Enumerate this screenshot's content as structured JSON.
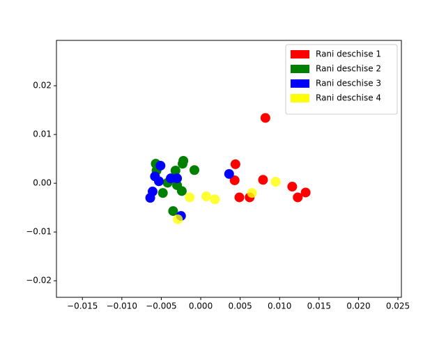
{
  "chart_data": {
    "type": "scatter",
    "series": [
      {
        "name": "Rani deschise 1",
        "color": "#ff0000",
        "x": [
          0.0082,
          0.0044,
          0.0043,
          0.0049,
          0.0062,
          0.0079,
          0.0116,
          0.0123,
          0.0133
        ],
        "y": [
          0.0134,
          0.0039,
          0.0006,
          -0.0029,
          -0.0029,
          0.0007,
          -0.0007,
          -0.0029,
          -0.0019
        ]
      },
      {
        "name": "Rani deschise 2",
        "color": "#008000",
        "x": [
          -0.0057,
          -0.0022,
          -0.0023,
          -0.0008,
          -0.0032,
          -0.0056,
          -0.0042,
          -0.003,
          -0.0024,
          -0.0048,
          -0.0035
        ],
        "y": [
          0.004,
          0.0046,
          0.004,
          0.0027,
          0.0026,
          0.0026,
          0.0001,
          -0.0004,
          -0.0016,
          -0.002,
          -0.0057
        ]
      },
      {
        "name": "Rani deschise 3",
        "color": "#0000ff",
        "x": [
          -0.0051,
          -0.0058,
          -0.0053,
          -0.0038,
          -0.003,
          -0.0061,
          -0.0064,
          0.0036,
          -0.0025
        ],
        "y": [
          0.0036,
          0.0014,
          0.0004,
          0.001,
          0.001,
          -0.0017,
          -0.003,
          0.0019,
          -0.0067
        ]
      },
      {
        "name": "Rani deschise 4",
        "color": "#ffff00",
        "x": [
          -0.0014,
          0.0007,
          0.0018,
          0.0065,
          0.0095,
          -0.0029
        ],
        "y": [
          -0.0029,
          -0.0027,
          -0.0033,
          -0.002,
          0.0003,
          -0.0074
        ]
      }
    ],
    "xlim": [
      -0.01829,
      0.02544
    ],
    "ylim": [
      -0.0234,
      0.0293
    ],
    "xticks": [
      {
        "value": -0.015,
        "label": "−0.015"
      },
      {
        "value": -0.01,
        "label": "−0.010"
      },
      {
        "value": -0.005,
        "label": "−0.005"
      },
      {
        "value": 0,
        "label": "0.000"
      },
      0.005,
      {
        "value": 0.01,
        "label": "0.010"
      },
      0.015,
      {
        "value": 0.02,
        "label": "0.020"
      },
      0.025
    ],
    "yticks": [
      {
        "value": -0.02,
        "label": "−0.02"
      },
      {
        "value": -0.01,
        "label": "−0.01"
      },
      {
        "value": 0,
        "label": "0.00"
      },
      0.01,
      0.02
    ],
    "legend": "upper right",
    "grid": false
  }
}
